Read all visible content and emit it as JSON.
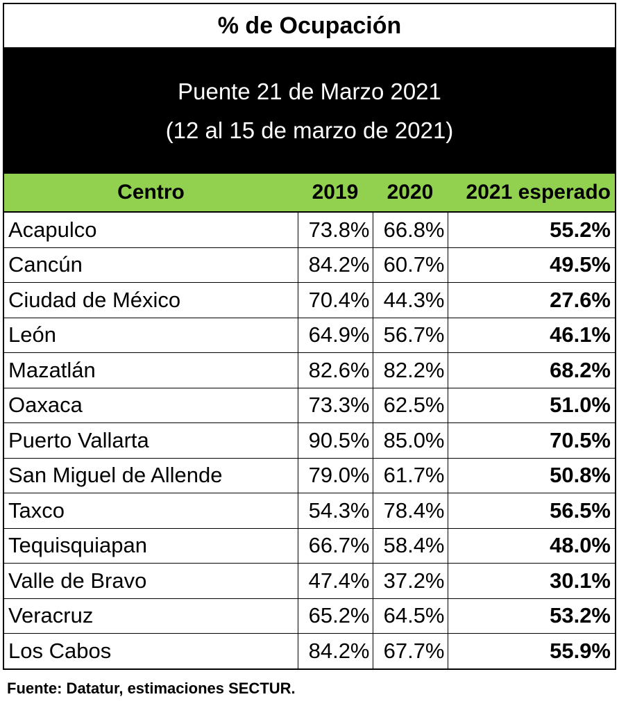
{
  "title": "% de Ocupación",
  "subtitle_line1": "Puente 21 de Marzo 2021",
  "subtitle_line2": "(12 al 15 de marzo de 2021)",
  "columns": {
    "centro": "Centro",
    "y2019": "2019",
    "y2020": "2020",
    "y2021": "2021 esperado"
  },
  "rows": [
    {
      "centro": "Acapulco",
      "y2019": "73.8%",
      "y2020": "66.8%",
      "y2021": "55.2%"
    },
    {
      "centro": "Cancún",
      "y2019": "84.2%",
      "y2020": "60.7%",
      "y2021": "49.5%"
    },
    {
      "centro": "Ciudad de México",
      "y2019": "70.4%",
      "y2020": "44.3%",
      "y2021": "27.6%"
    },
    {
      "centro": "León",
      "y2019": "64.9%",
      "y2020": "56.7%",
      "y2021": "46.1%"
    },
    {
      "centro": "Mazatlán",
      "y2019": "82.6%",
      "y2020": "82.2%",
      "y2021": "68.2%"
    },
    {
      "centro": "Oaxaca",
      "y2019": "73.3%",
      "y2020": "62.5%",
      "y2021": "51.0%"
    },
    {
      "centro": "Puerto Vallarta",
      "y2019": "90.5%",
      "y2020": "85.0%",
      "y2021": "70.5%"
    },
    {
      "centro": "San Miguel de Allende",
      "y2019": "79.0%",
      "y2020": "61.7%",
      "y2021": "50.8%"
    },
    {
      "centro": "Taxco",
      "y2019": "54.3%",
      "y2020": "78.4%",
      "y2021": "56.5%"
    },
    {
      "centro": "Tequisquiapan",
      "y2019": "66.7%",
      "y2020": "58.4%",
      "y2021": "48.0%"
    },
    {
      "centro": "Valle de Bravo",
      "y2019": "47.4%",
      "y2020": "37.2%",
      "y2021": "30.1%"
    },
    {
      "centro": "Veracruz",
      "y2019": "65.2%",
      "y2020": "64.5%",
      "y2021": "53.2%"
    },
    {
      "centro": "Los Cabos",
      "y2019": "84.2%",
      "y2020": "67.7%",
      "y2021": "55.9%"
    }
  ],
  "source": "Fuente: Datatur, estimaciones SECTUR.",
  "colors": {
    "header_green": "#92d050",
    "banner_black": "#000000"
  }
}
